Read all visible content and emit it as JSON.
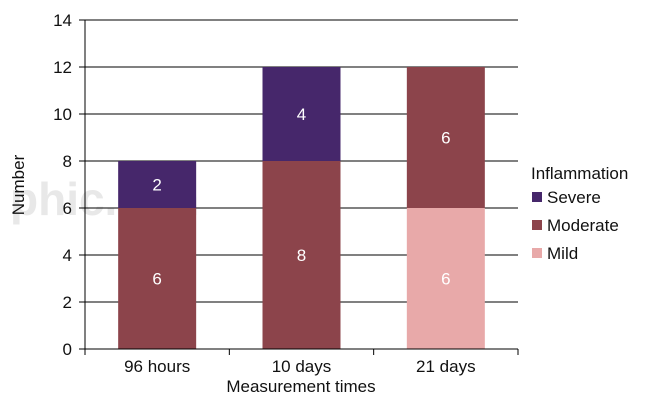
{
  "watermark": "phic.g.m",
  "chart_data": {
    "type": "bar",
    "stacked": true,
    "title": "",
    "xlabel": "Measurement times",
    "ylabel": "Number",
    "ylim": [
      0,
      14
    ],
    "yticks": [
      0,
      2,
      4,
      6,
      8,
      10,
      12,
      14
    ],
    "categories": [
      "96 hours",
      "10 days",
      "21 days"
    ],
    "grid": true,
    "legend": {
      "title": "Inflammation",
      "placement": "right"
    },
    "series": [
      {
        "name": "Mild",
        "color": "#e8a9a9",
        "values": [
          0,
          0,
          6
        ]
      },
      {
        "name": "Moderate",
        "color": "#8c444b",
        "values": [
          6,
          8,
          6
        ]
      },
      {
        "name": "Severe",
        "color": "#46276b",
        "values": [
          2,
          4,
          0
        ]
      }
    ],
    "legend_order": [
      "Severe",
      "Moderate",
      "Mild"
    ]
  }
}
